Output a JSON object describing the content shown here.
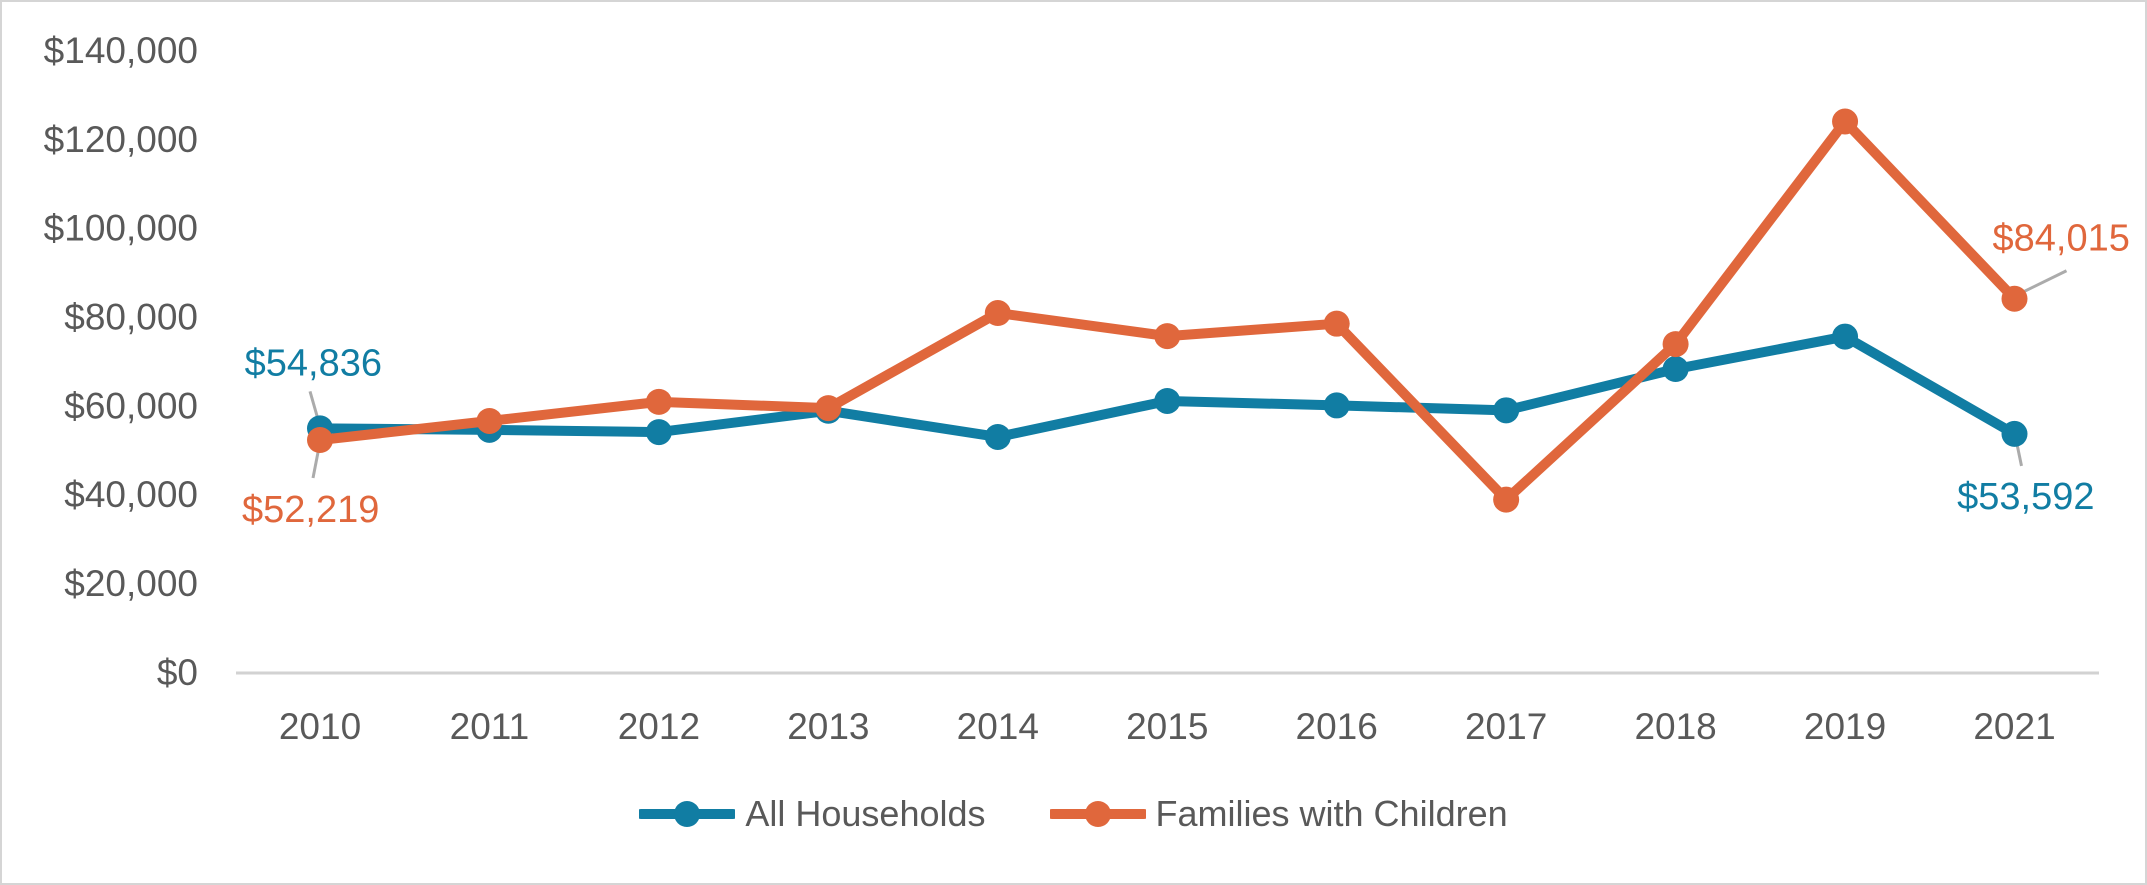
{
  "chart_data": {
    "type": "line",
    "categories": [
      "2010",
      "2011",
      "2012",
      "2013",
      "2014",
      "2015",
      "2016",
      "2017",
      "2018",
      "2019",
      "2021"
    ],
    "series": [
      {
        "name": "All Households",
        "color": "#117DA3",
        "values": [
          54836,
          54500,
          54000,
          58800,
          52900,
          61000,
          60000,
          58900,
          68200,
          75500,
          53592
        ]
      },
      {
        "name": "Families with Children",
        "color": "#E0673C",
        "values": [
          52219,
          56500,
          60800,
          59400,
          80800,
          75600,
          78400,
          38800,
          73800,
          123900,
          84015
        ]
      }
    ],
    "title": "",
    "xlabel": "",
    "ylabel": "",
    "ylim": [
      0,
      140000
    ],
    "ytick_step": 20000,
    "ytick_labels": [
      "$0",
      "$20,000",
      "$40,000",
      "$60,000",
      "$80,000",
      "$100,000",
      "$120,000",
      "$140,000"
    ],
    "grid": false,
    "legend_position": "bottom",
    "annotations": [
      {
        "series_index": 0,
        "category_index": 0,
        "label": "$54,836"
      },
      {
        "series_index": 1,
        "category_index": 0,
        "label": "$52,219"
      },
      {
        "series_index": 1,
        "category_index": 10,
        "label": "$84,015"
      },
      {
        "series_index": 0,
        "category_index": 10,
        "label": "$53,592"
      }
    ],
    "colors": {
      "axis_text": "#595959",
      "axis_line": "#D2D2D2",
      "leader_line": "#ABABAB"
    }
  }
}
